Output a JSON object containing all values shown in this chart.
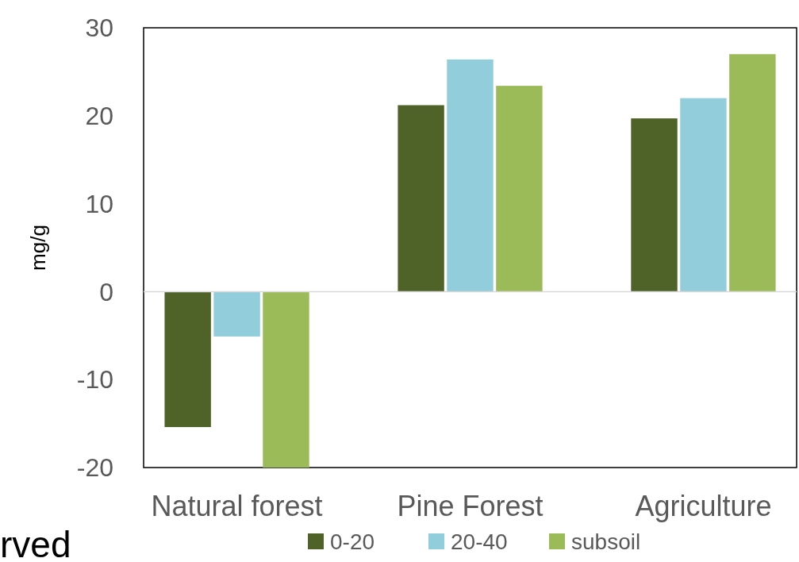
{
  "chart_data": {
    "type": "bar",
    "ylabel": "mg/g",
    "categories": [
      "Natural forest",
      "Pine Forest",
      "Agriculture"
    ],
    "series": [
      {
        "name": "0-20",
        "color": "#4f6228",
        "values": [
          -15.4,
          21.2,
          19.7
        ]
      },
      {
        "name": "20-40",
        "color": "#92cddc",
        "values": [
          -5.1,
          26.4,
          22.0
        ]
      },
      {
        "name": "subsoil",
        "color": "#9bbb59",
        "values": [
          -20,
          23.4,
          27.0
        ]
      }
    ],
    "ylim": [
      -20,
      30
    ],
    "yticks": [
      -20,
      -10,
      0,
      10,
      20,
      30
    ],
    "legend": "bottom",
    "annotations": [
      "rved"
    ]
  }
}
